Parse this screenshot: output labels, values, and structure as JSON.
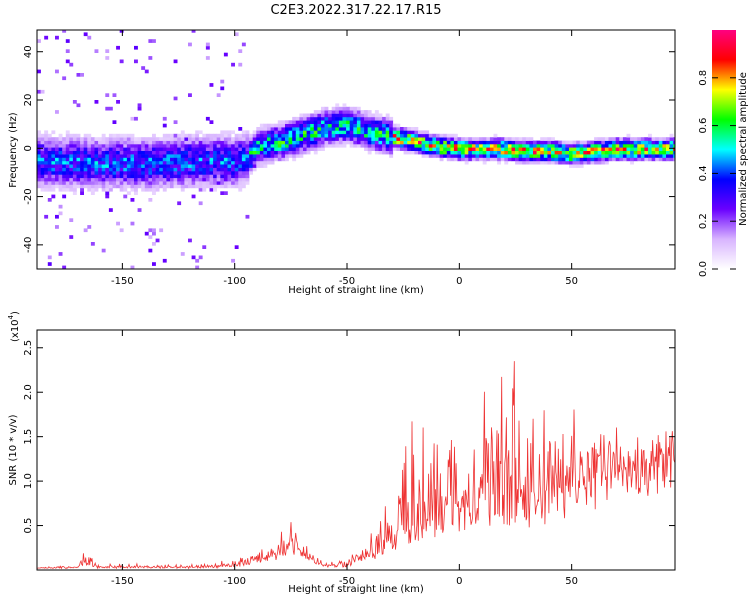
{
  "chart_data": [
    {
      "type": "heatmap",
      "title": "C2E3.2022.317.22.17.R15",
      "xlabel": "Height of straight line (km)",
      "ylabel": "Frequency (Hz)",
      "xlim": [
        -188,
        96
      ],
      "ylim": [
        -50,
        49
      ],
      "xticks": [
        -150,
        -100,
        -50,
        0,
        50
      ],
      "yticks": [
        -40,
        -20,
        0,
        20,
        40
      ],
      "ridge": {
        "x": [
          -188,
          -160,
          -140,
          -120,
          -100,
          -95,
          -90,
          -80,
          -70,
          -60,
          -50,
          -40,
          -30,
          -20,
          -10,
          0,
          10,
          20,
          30,
          40,
          50,
          60,
          70,
          80,
          96
        ],
        "y": [
          -6,
          -7,
          -7,
          -6,
          -6,
          -5,
          0,
          2,
          5,
          8,
          9,
          6,
          4,
          2,
          0,
          -1,
          -1,
          -1,
          -2,
          -2,
          -3,
          -2,
          -1,
          -1,
          -1
        ]
      },
      "colorbar": {
        "label": "Normalized spectral amplitude",
        "range": [
          0,
          1
        ],
        "ticks": [
          "0.0",
          "0.2",
          "0.4",
          "0.6",
          "0.8"
        ],
        "colors": [
          "#ffffff",
          "#d8b4ff",
          "#6a00ff",
          "#0000ff",
          "#00ffff",
          "#00ff00",
          "#ffff00",
          "#ff0000",
          "#ff0080"
        ]
      }
    },
    {
      "type": "line",
      "xlabel": "Height of straight line (km)",
      "ylabel": "SNR (10 * v/v)",
      "y_multiplier": "(x10",
      "y_multiplier_exp": "4",
      "xlim": [
        -188,
        96
      ],
      "ylim": [
        0,
        2.7
      ],
      "xticks": [
        -150,
        -100,
        -50,
        0,
        50
      ],
      "yticks": [
        0.5,
        1.0,
        1.5,
        2.0,
        2.5
      ],
      "color": "#ee3333",
      "envelope": {
        "x": [
          -188,
          -170,
          -166,
          -160,
          -120,
          -100,
          -90,
          -80,
          -75,
          -70,
          -65,
          -60,
          -50,
          -40,
          -30,
          -25,
          -20,
          -10,
          0,
          10,
          20,
          25,
          30,
          40,
          50,
          60,
          70,
          80,
          96
        ],
        "base": [
          0.02,
          0.03,
          0.06,
          0.03,
          0.03,
          0.05,
          0.1,
          0.2,
          0.25,
          0.2,
          0.1,
          0.05,
          0.05,
          0.15,
          0.3,
          0.5,
          0.45,
          0.55,
          0.6,
          0.65,
          0.75,
          0.8,
          0.75,
          0.8,
          0.9,
          1.1,
          1.2,
          1.3,
          1.4
        ],
        "amp": [
          0.02,
          0.04,
          0.25,
          0.04,
          0.04,
          0.08,
          0.15,
          0.3,
          0.35,
          0.25,
          0.12,
          0.05,
          0.1,
          0.3,
          0.6,
          1.0,
          1.5,
          1.2,
          1.0,
          1.4,
          1.8,
          1.9,
          1.6,
          1.2,
          1.0,
          0.8,
          0.5,
          0.3,
          0.15
        ]
      }
    }
  ]
}
